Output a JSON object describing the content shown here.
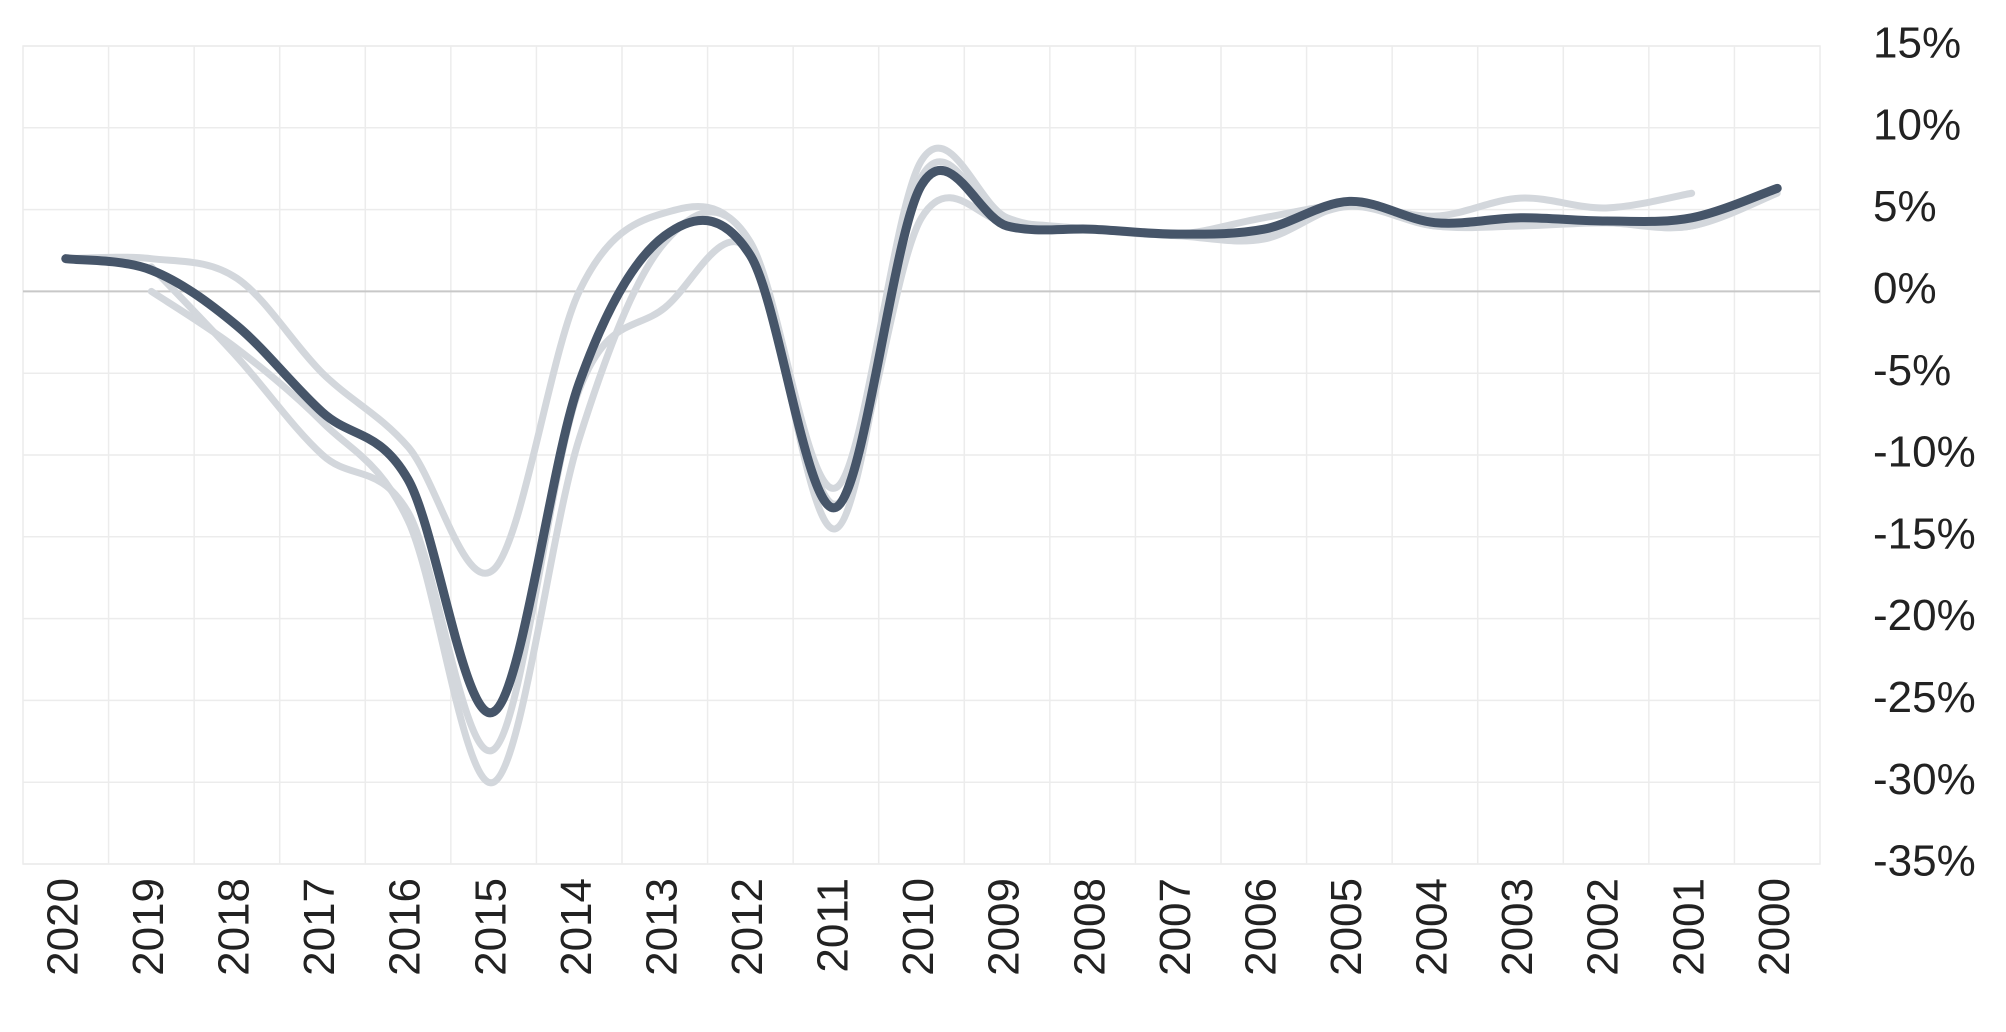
{
  "chart_data": {
    "type": "line",
    "categories": [
      "2020",
      "2019",
      "2018",
      "2017",
      "2016",
      "2015",
      "2014",
      "2013",
      "2012",
      "2011",
      "2010",
      "2009",
      "2008",
      "2007",
      "2006",
      "2005",
      "2004",
      "2003",
      "2002",
      "2001",
      "2000"
    ],
    "series": [
      {
        "color": "#d3d7dc",
        "values": [
          null,
          0,
          -3.5,
          -8,
          -14,
          -30,
          -9,
          3,
          3,
          -14.5,
          7,
          4,
          3.8,
          3.4,
          3.2,
          5.3,
          4,
          4,
          4.2,
          4,
          6
        ]
      },
      {
        "color": "#d3d7dc",
        "values": [
          2,
          2,
          0.8,
          -5,
          -9.5,
          -17,
          0,
          4.8,
          3,
          -12,
          8,
          4.5,
          3.8,
          3.5,
          4.5,
          5.3,
          4.6,
          5.7,
          5.1,
          6,
          null
        ]
      },
      {
        "color": "#d3d7dc",
        "values": [
          null,
          1.5,
          -4,
          -10,
          -13.5,
          -28,
          -6,
          -1,
          2.5,
          -13,
          4.5,
          4.2,
          3.8,
          3.4,
          3.5,
          5.2,
          4,
          4.2,
          4.2,
          4,
          6.2
        ]
      },
      {
        "color": "#465569",
        "values": [
          2,
          1.3,
          -2.1,
          -7.4,
          -11.5,
          -25.7,
          -5.6,
          3.4,
          2.2,
          -13.2,
          6.5,
          4,
          3.8,
          3.5,
          3.8,
          5.5,
          4.2,
          4.5,
          4.3,
          4.5,
          6.3
        ]
      }
    ],
    "ylim": [
      -35,
      15
    ],
    "yticks": [
      {
        "value": 15,
        "label": "15%"
      },
      {
        "value": 10,
        "label": "10%"
      },
      {
        "value": 5,
        "label": "5%"
      },
      {
        "value": 0,
        "label": "0%"
      },
      {
        "value": -5,
        "label": "-5%"
      },
      {
        "value": -10,
        "label": "-10%"
      },
      {
        "value": -15,
        "label": "-15%"
      },
      {
        "value": -20,
        "label": "-20%"
      },
      {
        "value": -25,
        "label": "-25%"
      },
      {
        "value": -30,
        "label": "-30%"
      },
      {
        "value": -35,
        "label": "-35%"
      }
    ],
    "grid": true
  }
}
